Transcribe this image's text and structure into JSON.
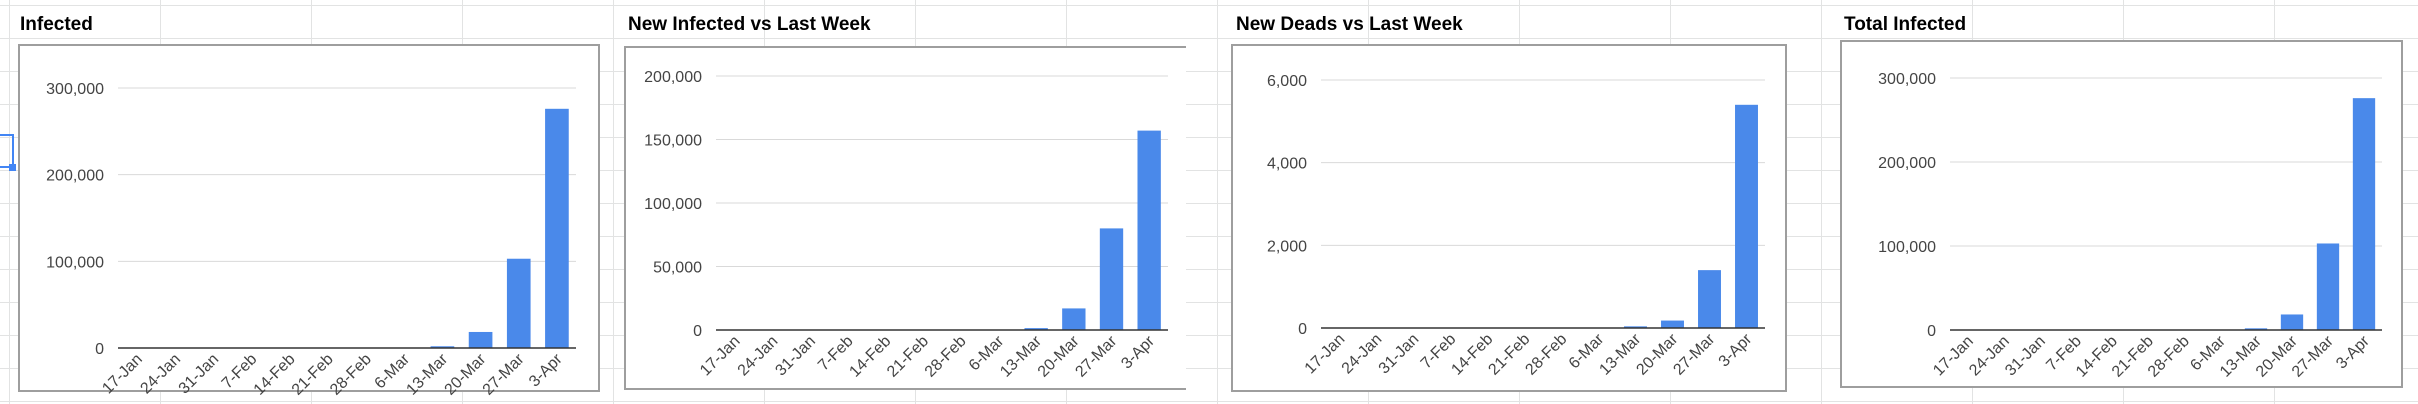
{
  "colors": {
    "bar": "#4a89ea",
    "grid": "#d9d9d9",
    "axis": "#333333",
    "tick_text": "#444444"
  },
  "chart_data": [
    {
      "type": "bar",
      "title": "Infected",
      "categories": [
        "17-Jan",
        "24-Jan",
        "31-Jan",
        "7-Feb",
        "14-Feb",
        "21-Feb",
        "28-Feb",
        "6-Mar",
        "13-Mar",
        "20-Mar",
        "27-Mar",
        "3-Apr"
      ],
      "series": [
        {
          "values": [
            0,
            0,
            0,
            0,
            0,
            0,
            0,
            0,
            2000,
            18500,
            103000,
            276000
          ]
        }
      ],
      "yticks": [
        "0",
        "100,000",
        "200,000",
        "300,000"
      ],
      "ytick_values": [
        0,
        100000,
        200000,
        300000
      ],
      "ylim": [
        0,
        300000
      ],
      "grid": true
    },
    {
      "type": "bar",
      "title": "New Infected vs Last Week",
      "categories": [
        "17-Jan",
        "24-Jan",
        "31-Jan",
        "7-Feb",
        "14-Feb",
        "21-Feb",
        "28-Feb",
        "6-Mar",
        "13-Mar",
        "20-Mar",
        "27-Mar",
        "3-Apr"
      ],
      "series": [
        {
          "values": [
            0,
            0,
            0,
            0,
            0,
            0,
            0,
            0,
            1500,
            17000,
            80000,
            157000
          ]
        }
      ],
      "yticks": [
        "0",
        "50,000",
        "100,000",
        "150,000",
        "200,000"
      ],
      "ytick_values": [
        0,
        50000,
        100000,
        150000,
        200000
      ],
      "ylim": [
        0,
        200000
      ],
      "grid": true
    },
    {
      "type": "bar",
      "title": "New Deads vs Last Week",
      "categories": [
        "17-Jan",
        "24-Jan",
        "31-Jan",
        "7-Feb",
        "14-Feb",
        "21-Feb",
        "28-Feb",
        "6-Mar",
        "13-Mar",
        "20-Mar",
        "27-Mar",
        "3-Apr"
      ],
      "series": [
        {
          "values": [
            0,
            0,
            0,
            0,
            0,
            0,
            0,
            0,
            40,
            180,
            1400,
            5400
          ]
        }
      ],
      "yticks": [
        "0",
        "2,000",
        "4,000",
        "6,000"
      ],
      "ytick_values": [
        0,
        2000,
        4000,
        6000
      ],
      "ylim": [
        0,
        6000
      ],
      "grid": true
    },
    {
      "type": "bar",
      "title": "Total Infected",
      "categories": [
        "17-Jan",
        "24-Jan",
        "31-Jan",
        "7-Feb",
        "14-Feb",
        "21-Feb",
        "28-Feb",
        "6-Mar",
        "13-Mar",
        "20-Mar",
        "27-Mar",
        "3-Apr"
      ],
      "series": [
        {
          "values": [
            0,
            0,
            0,
            0,
            0,
            0,
            0,
            0,
            2000,
            18500,
            103000,
            276000
          ]
        }
      ],
      "yticks": [
        "0",
        "100,000",
        "200,000",
        "300,000"
      ],
      "ytick_values": [
        0,
        100000,
        200000,
        300000
      ],
      "ylim": [
        0,
        300000
      ],
      "grid": true
    }
  ]
}
